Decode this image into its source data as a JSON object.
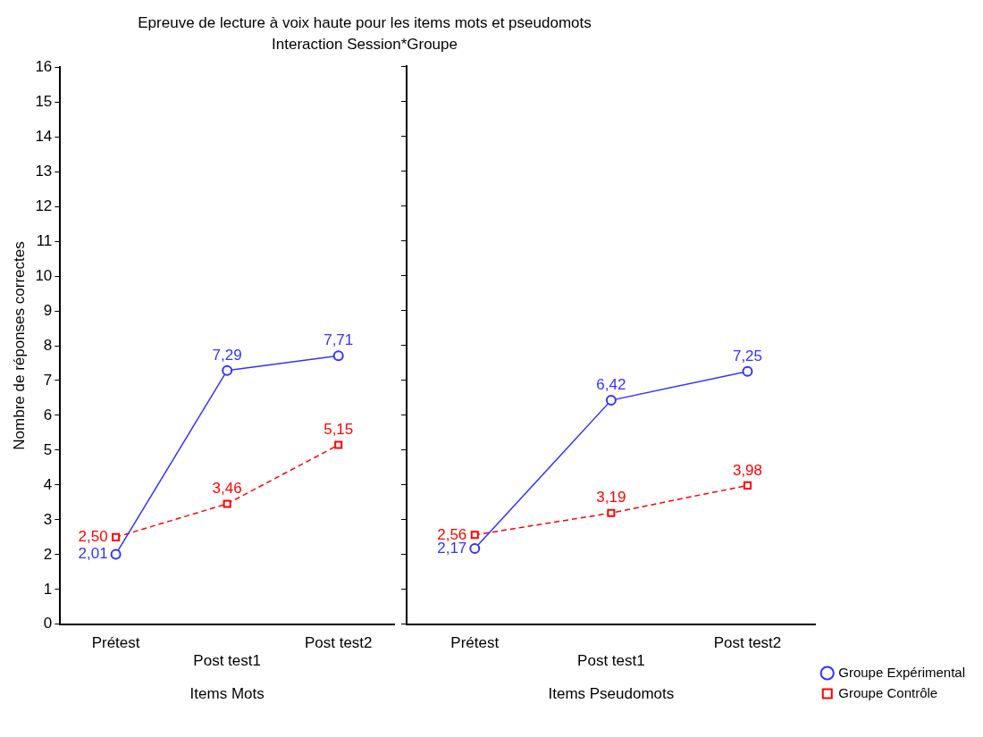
{
  "chart_data": [
    {
      "type": "line",
      "title": "Epreuve de lecture à voix haute pour les items mots et pseudomots",
      "subtitle": "Interaction Session*Groupe",
      "xlabel": "Items Mots",
      "ylabel": "Nombre de réponses correctes",
      "categories": [
        "Prétest",
        "Post test1",
        "Post test2"
      ],
      "ylim": [
        0,
        16
      ],
      "yticks": [
        0,
        1,
        2,
        3,
        4,
        5,
        6,
        7,
        8,
        9,
        10,
        11,
        12,
        13,
        14,
        15,
        16
      ],
      "legend": false,
      "series": [
        {
          "color": "#3333ff",
          "values": [
            2.01,
            7.29,
            7.71
          ],
          "value_labels": [
            "2,01",
            "7,29",
            "7,71"
          ],
          "marker": "circle",
          "line_style": "solid"
        },
        {
          "color": "#ff0000",
          "values": [
            2.5,
            3.46,
            5.15
          ],
          "value_labels": [
            "2,50",
            "3,46",
            "5,15"
          ],
          "marker": "square",
          "line_style": "dashed"
        }
      ]
    },
    {
      "type": "line",
      "xlabel": "Items Pseudomots",
      "categories": [
        "Prétest",
        "Post test1",
        "Post test2"
      ],
      "ylim": [
        0,
        16
      ],
      "yticks": [
        0,
        1,
        2,
        3,
        4,
        5,
        6,
        7,
        8,
        9,
        10,
        11,
        12,
        13,
        14,
        15,
        16
      ],
      "tick_labels": "x",
      "legend": "bottom right",
      "series": [
        {
          "name": "Groupe Expérimental",
          "color": "#3333ff",
          "values": [
            2.17,
            6.42,
            7.25
          ],
          "value_labels": [
            "2,17",
            "6,42",
            "7,25"
          ],
          "marker": "circle",
          "line_style": "solid"
        },
        {
          "name": "Groupe Contrôle",
          "color": "#ff0000",
          "values": [
            2.56,
            3.19,
            3.98
          ],
          "value_labels": [
            "2,56",
            "3,19",
            "3,98"
          ],
          "marker": "square",
          "line_style": "dashed"
        }
      ]
    }
  ]
}
